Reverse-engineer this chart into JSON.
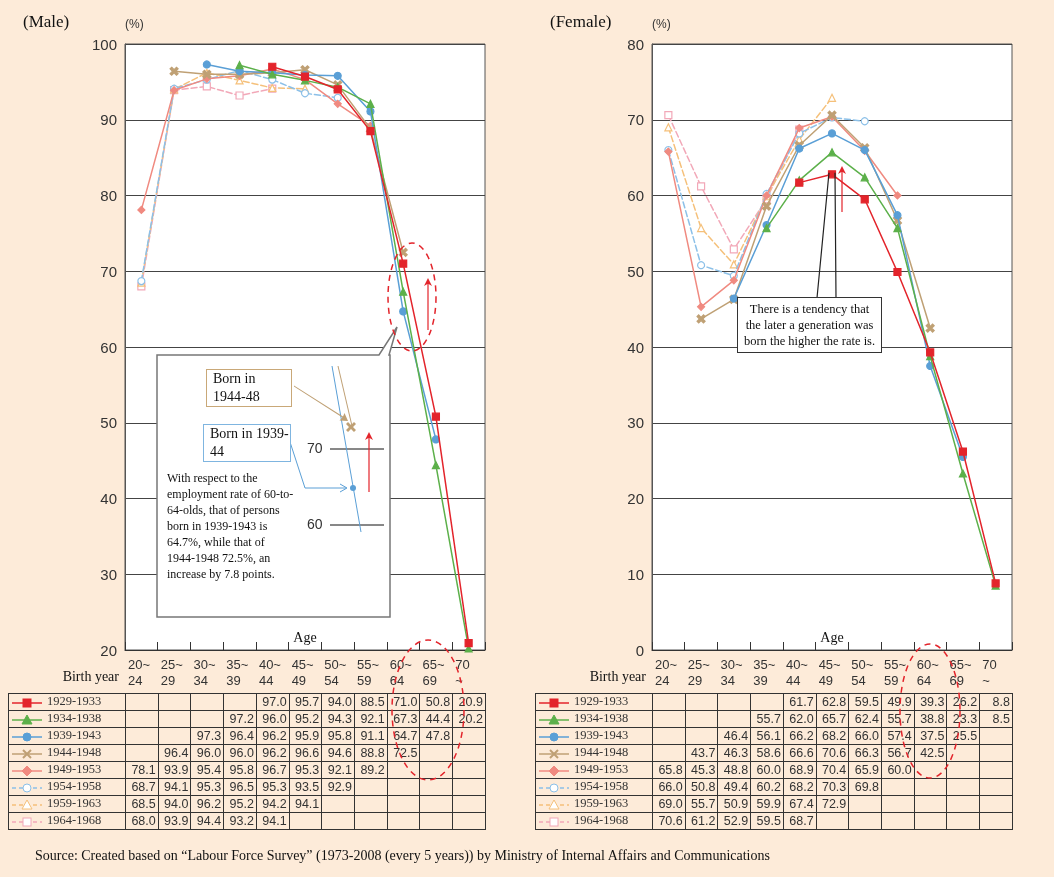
{
  "chart_data": [
    {
      "type": "line",
      "title": "(Male)",
      "ylabel": "(%)",
      "xlabel": "Age",
      "legend_title": "Birth year",
      "categories": [
        "20~\n24",
        "25~\n29",
        "30~\n34",
        "35~\n39",
        "40~\n44",
        "45~\n49",
        "50~\n54",
        "55~\n59",
        "60~\n64",
        "65~\n69",
        "70\n~"
      ],
      "ylim": [
        20,
        100
      ],
      "yticks": [
        20,
        30,
        40,
        50,
        60,
        70,
        80,
        90,
        100
      ],
      "grid": "y",
      "legend": "bottom",
      "series": [
        {
          "name": "1929-1933",
          "color": "#e3242b",
          "marker": "square",
          "line_style": "solid",
          "values": [
            null,
            null,
            null,
            null,
            97.0,
            95.7,
            94.0,
            88.5,
            71.0,
            50.8,
            20.9
          ],
          "value_labels": [
            null,
            null,
            null,
            null,
            "97.0",
            "95.7",
            "94.0",
            "88.5",
            "71.0",
            "50.8",
            "20.9"
          ]
        },
        {
          "name": "1934-1938",
          "color": "#5cb04a",
          "marker": "triangle",
          "line_style": "solid",
          "values": [
            null,
            null,
            null,
            97.2,
            96.0,
            95.2,
            94.3,
            92.1,
            67.3,
            44.4,
            20.2
          ],
          "value_labels": [
            null,
            null,
            null,
            "97.2",
            "96.0",
            "95.2",
            "94.3",
            "92.1",
            "67.3",
            "44.4",
            "20.2"
          ]
        },
        {
          "name": "1939-1943",
          "color": "#5a9fd6",
          "marker": "circle",
          "line_style": "solid",
          "values": [
            null,
            null,
            97.3,
            96.4,
            96.2,
            95.9,
            95.8,
            91.1,
            64.7,
            47.8,
            null
          ],
          "value_labels": [
            null,
            null,
            "97.3",
            "96.4",
            "96.2",
            "95.9",
            "95.8",
            "91.1",
            "64.7",
            "47.8",
            null
          ]
        },
        {
          "name": "1944-1948",
          "color": "#bfa074",
          "marker": "cross",
          "line_style": "solid",
          "values": [
            null,
            96.4,
            96.0,
            96.0,
            96.2,
            96.6,
            94.6,
            88.8,
            72.5,
            null,
            null
          ],
          "value_labels": [
            null,
            "96.4",
            "96.0",
            "96.0",
            "96.2",
            "96.6",
            "94.6",
            "88.8",
            "72.5",
            null,
            null
          ]
        },
        {
          "name": "1949-1953",
          "color": "#f08a80",
          "marker": "diamond",
          "line_style": "solid",
          "values": [
            78.1,
            93.9,
            95.4,
            95.8,
            96.7,
            95.3,
            92.1,
            89.2,
            null,
            null,
            null
          ],
          "value_labels": [
            "78.1",
            "93.9",
            "95.4",
            "95.8",
            "96.7",
            "95.3",
            "92.1",
            "89.2",
            null,
            null,
            null
          ]
        },
        {
          "name": "1954-1958",
          "color": "#8cc0e8",
          "marker": "circle",
          "line_style": "dashed",
          "values": [
            68.7,
            94.1,
            95.3,
            96.5,
            95.3,
            93.5,
            92.9,
            null,
            null,
            null,
            null
          ],
          "value_labels": [
            "68.7",
            "94.1",
            "95.3",
            "96.5",
            "95.3",
            "93.5",
            "92.9",
            null,
            null,
            null,
            null
          ]
        },
        {
          "name": "1959-1963",
          "color": "#f5c07a",
          "marker": "triangle",
          "line_style": "dashed",
          "values": [
            68.5,
            94.0,
            96.2,
            95.2,
            94.2,
            94.1,
            null,
            null,
            null,
            null,
            null
          ],
          "value_labels": [
            "68.5",
            "94.0",
            "96.2",
            "95.2",
            "94.2",
            "94.1",
            null,
            null,
            null,
            null,
            null
          ]
        },
        {
          "name": "1964-1968",
          "color": "#f2a8b8",
          "marker": "square",
          "line_style": "dashed",
          "values": [
            68.0,
            93.9,
            94.4,
            93.2,
            94.1,
            null,
            null,
            null,
            null,
            null,
            null
          ],
          "value_labels": [
            "68.0",
            "93.9",
            "94.4",
            "93.2",
            "94.1",
            null,
            null,
            null,
            null,
            null,
            null
          ]
        }
      ],
      "annotations": [
        "Born in 1944-48",
        "Born in 1939-44",
        "70",
        "60",
        "With respect to the employment rate of 60-to-64-olds, that of persons born in 1939-1943 is 64.7%, while that of 1944-1948 72.5%, an increase by 7.8 points.",
        "Source: Created based on “Labour Force Survey” (1973-2008 (every 5 years)) by Ministry of Internal Affairs and Communications"
      ]
    },
    {
      "type": "line",
      "title": "(Female)",
      "ylabel": "(%)",
      "xlabel": "Age",
      "legend_title": "Birth year",
      "categories": [
        "20~\n24",
        "25~\n29",
        "30~\n34",
        "35~\n39",
        "40~\n44",
        "45~\n49",
        "50~\n54",
        "55~\n59",
        "60~\n64",
        "65~\n69",
        "70\n~"
      ],
      "ylim": [
        0,
        80
      ],
      "yticks": [
        0,
        10,
        20,
        30,
        40,
        50,
        60,
        70,
        80
      ],
      "grid": "y",
      "legend": "bottom",
      "series": [
        {
          "name": "1929-1933",
          "color": "#e3242b",
          "marker": "square",
          "line_style": "solid",
          "values": [
            null,
            null,
            null,
            null,
            61.7,
            62.8,
            59.5,
            49.9,
            39.3,
            26.2,
            8.8
          ],
          "value_labels": [
            null,
            null,
            null,
            null,
            "61.7",
            "62.8",
            "59.5",
            "49.9",
            "39.3",
            "26.2",
            "8.8"
          ]
        },
        {
          "name": "1934-1938",
          "color": "#5cb04a",
          "marker": "triangle",
          "line_style": "solid",
          "values": [
            null,
            null,
            null,
            55.7,
            62.0,
            65.7,
            62.4,
            55.7,
            38.8,
            23.3,
            8.5
          ],
          "value_labels": [
            null,
            null,
            null,
            "55.7",
            "62.0",
            "65.7",
            "62.4",
            "55.7",
            "38.8",
            "23.3",
            "8.5"
          ]
        },
        {
          "name": "1939-1943",
          "color": "#5a9fd6",
          "marker": "circle",
          "line_style": "solid",
          "values": [
            null,
            null,
            46.4,
            56.1,
            66.2,
            68.2,
            66.0,
            57.4,
            37.5,
            25.5,
            null
          ],
          "value_labels": [
            null,
            null,
            "46.4",
            "56.1",
            "66.2",
            "68.2",
            "66.0",
            "57.4",
            "37.5",
            "25.5",
            null
          ]
        },
        {
          "name": "1944-1948",
          "color": "#bfa074",
          "marker": "cross",
          "line_style": "solid",
          "values": [
            null,
            43.7,
            46.3,
            58.6,
            66.6,
            70.6,
            66.3,
            56.7,
            42.5,
            null,
            null
          ],
          "value_labels": [
            null,
            "43.7",
            "46.3",
            "58.6",
            "66.6",
            "70.6",
            "66.3",
            "56.7",
            "42.5",
            null,
            null
          ]
        },
        {
          "name": "1949-1953",
          "color": "#f08a80",
          "marker": "diamond",
          "line_style": "solid",
          "values": [
            65.8,
            45.3,
            48.8,
            60.0,
            68.9,
            70.4,
            65.9,
            60.0,
            null,
            null,
            null
          ],
          "value_labels": [
            "65.8",
            "45.3",
            "48.8",
            "60.0",
            "68.9",
            "70.4",
            "65.9",
            "60.0",
            null,
            null,
            null
          ]
        },
        {
          "name": "1954-1958",
          "color": "#8cc0e8",
          "marker": "circle",
          "line_style": "dashed",
          "values": [
            66.0,
            50.8,
            49.4,
            60.2,
            68.2,
            70.3,
            69.8,
            null,
            null,
            null,
            null
          ],
          "value_labels": [
            "66.0",
            "50.8",
            "49.4",
            "60.2",
            "68.2",
            "70.3",
            "69.8",
            null,
            null,
            null,
            null
          ]
        },
        {
          "name": "1959-1963",
          "color": "#f5c07a",
          "marker": "triangle",
          "line_style": "dashed",
          "values": [
            69.0,
            55.7,
            50.9,
            59.9,
            67.4,
            72.9,
            null,
            null,
            null,
            null,
            null
          ],
          "value_labels": [
            "69.0",
            "55.7",
            "50.9",
            "59.9",
            "67.4",
            "72.9",
            null,
            null,
            null,
            null,
            null
          ]
        },
        {
          "name": "1964-1968",
          "color": "#f2a8b8",
          "marker": "square",
          "line_style": "dashed",
          "values": [
            70.6,
            61.2,
            52.9,
            59.5,
            68.7,
            null,
            null,
            null,
            null,
            null,
            null
          ],
          "value_labels": [
            "70.6",
            "61.2",
            "52.9",
            "59.5",
            "68.7",
            null,
            null,
            null,
            null,
            null,
            null
          ]
        }
      ],
      "annotations": [
        {
          "text": "There is a tendency that the later a generation was born the higher the rate is.",
          "x": "45~\n49",
          "y": 63
        }
      ]
    }
  ]
}
